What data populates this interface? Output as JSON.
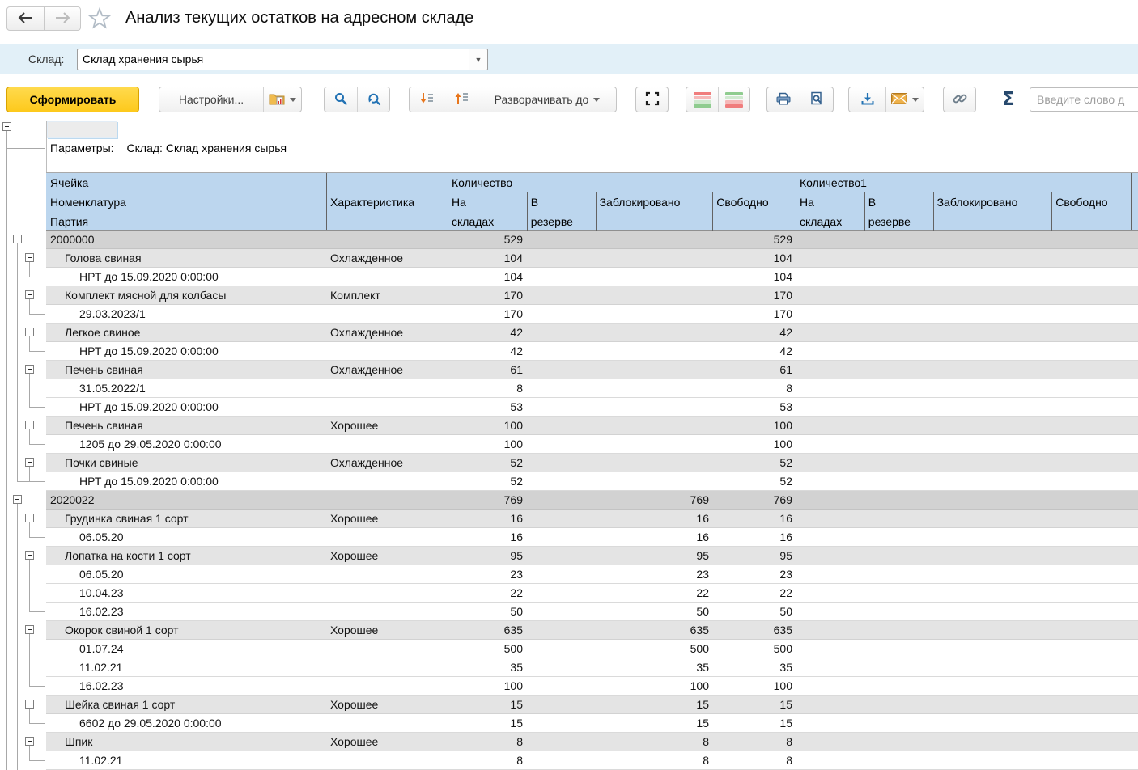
{
  "window": {
    "title": "Анализ текущих остатков на адресном складе"
  },
  "filter": {
    "label": "Склад:",
    "value": "Склад хранения сырья"
  },
  "toolbar": {
    "generate_label": "Сформировать",
    "settings_label": "Настройки...",
    "expand_to_label": "Разворачивать до",
    "sum_symbol": "Σ",
    "search_placeholder": "Введите слово д",
    "icons": [
      "back-arrow",
      "forward-arrow",
      "favorite-star",
      "report-variants-folder",
      "search",
      "search-next",
      "expand-all",
      "collapse-all",
      "autofit",
      "conditional-appearance-red-green",
      "conditional-appearance-green-red",
      "print",
      "print-preview",
      "save",
      "send-email",
      "get-link",
      "sum"
    ]
  },
  "colors": {
    "accent_yellow": "#FDC91C",
    "filter_bar": "#E2F0F8",
    "header_blue": "#BCD6EE",
    "group_row": "#D2D2D2",
    "item_row": "#E4E4E4",
    "icon_blue": "#2272B4",
    "icon_orange": "#E8761C"
  },
  "report": {
    "parameters_label": "Параметры:",
    "parameters_value": "Склад: Склад хранения сырья",
    "header": {
      "dimension_lines": [
        "Ячейка",
        "Номенклатура",
        "Партия"
      ],
      "characteristic": "Характеристика",
      "groups": [
        {
          "label": "Количество",
          "columns": [
            "На\nскладах",
            "В\nрезерве",
            "Заблокировано",
            "Свободно"
          ]
        },
        {
          "label": "Количество1",
          "columns": [
            "На\nскладах",
            "В\nрезерве",
            "Заблокировано",
            "Свободно"
          ]
        }
      ]
    },
    "rows": [
      {
        "level": 1,
        "name": "2000000",
        "characteristic": "",
        "values": [
          "529",
          "",
          "",
          "529",
          "",
          "",
          "",
          ""
        ]
      },
      {
        "level": 2,
        "name": "Голова свиная",
        "characteristic": "Охлажденное",
        "values": [
          "104",
          "",
          "",
          "104",
          "",
          "",
          "",
          ""
        ]
      },
      {
        "level": 3,
        "name": "НРТ до 15.09.2020 0:00:00",
        "characteristic": "",
        "values": [
          "104",
          "",
          "",
          "104",
          "",
          "",
          "",
          ""
        ]
      },
      {
        "level": 2,
        "name": "Комплект мясной для колбасы",
        "characteristic": "Комплект",
        "values": [
          "170",
          "",
          "",
          "170",
          "",
          "",
          "",
          ""
        ]
      },
      {
        "level": 3,
        "name": "29.03.2023/1",
        "characteristic": "",
        "values": [
          "170",
          "",
          "",
          "170",
          "",
          "",
          "",
          ""
        ]
      },
      {
        "level": 2,
        "name": "Легкое свиное",
        "characteristic": "Охлажденное",
        "values": [
          "42",
          "",
          "",
          "42",
          "",
          "",
          "",
          ""
        ]
      },
      {
        "level": 3,
        "name": "НРТ до 15.09.2020 0:00:00",
        "characteristic": "",
        "values": [
          "42",
          "",
          "",
          "42",
          "",
          "",
          "",
          ""
        ]
      },
      {
        "level": 2,
        "name": "Печень свиная",
        "characteristic": "Охлажденное",
        "values": [
          "61",
          "",
          "",
          "61",
          "",
          "",
          "",
          ""
        ]
      },
      {
        "level": 3,
        "name": "31.05.2022/1",
        "characteristic": "",
        "values": [
          "8",
          "",
          "",
          "8",
          "",
          "",
          "",
          ""
        ]
      },
      {
        "level": 3,
        "name": "НРТ до 15.09.2020 0:00:00",
        "characteristic": "",
        "values": [
          "53",
          "",
          "",
          "53",
          "",
          "",
          "",
          ""
        ]
      },
      {
        "level": 2,
        "name": "Печень свиная",
        "characteristic": "Хорошее",
        "values": [
          "100",
          "",
          "",
          "100",
          "",
          "",
          "",
          ""
        ]
      },
      {
        "level": 3,
        "name": "1205 до 29.05.2020 0:00:00",
        "characteristic": "",
        "values": [
          "100",
          "",
          "",
          "100",
          "",
          "",
          "",
          ""
        ]
      },
      {
        "level": 2,
        "name": "Почки свиные",
        "characteristic": "Охлажденное",
        "values": [
          "52",
          "",
          "",
          "52",
          "",
          "",
          "",
          ""
        ]
      },
      {
        "level": 3,
        "name": "НРТ до 15.09.2020 0:00:00",
        "characteristic": "",
        "values": [
          "52",
          "",
          "",
          "52",
          "",
          "",
          "",
          ""
        ]
      },
      {
        "level": 1,
        "name": "2020022",
        "characteristic": "",
        "values": [
          "769",
          "",
          "769",
          "769",
          "",
          "",
          "",
          ""
        ]
      },
      {
        "level": 2,
        "name": "Грудинка свиная 1 сорт",
        "characteristic": "Хорошее",
        "values": [
          "16",
          "",
          "16",
          "16",
          "",
          "",
          "",
          ""
        ]
      },
      {
        "level": 3,
        "name": "06.05.20",
        "characteristic": "",
        "values": [
          "16",
          "",
          "16",
          "16",
          "",
          "",
          "",
          ""
        ]
      },
      {
        "level": 2,
        "name": "Лопатка на кости 1 сорт",
        "characteristic": "Хорошее",
        "values": [
          "95",
          "",
          "95",
          "95",
          "",
          "",
          "",
          ""
        ]
      },
      {
        "level": 3,
        "name": "06.05.20",
        "characteristic": "",
        "values": [
          "23",
          "",
          "23",
          "23",
          "",
          "",
          "",
          ""
        ]
      },
      {
        "level": 3,
        "name": "10.04.23",
        "characteristic": "",
        "values": [
          "22",
          "",
          "22",
          "22",
          "",
          "",
          "",
          ""
        ]
      },
      {
        "level": 3,
        "name": "16.02.23",
        "characteristic": "",
        "values": [
          "50",
          "",
          "50",
          "50",
          "",
          "",
          "",
          ""
        ]
      },
      {
        "level": 2,
        "name": "Окорок свиной 1 сорт",
        "characteristic": "Хорошее",
        "values": [
          "635",
          "",
          "635",
          "635",
          "",
          "",
          "",
          ""
        ]
      },
      {
        "level": 3,
        "name": "01.07.24",
        "characteristic": "",
        "values": [
          "500",
          "",
          "500",
          "500",
          "",
          "",
          "",
          ""
        ]
      },
      {
        "level": 3,
        "name": "11.02.21",
        "characteristic": "",
        "values": [
          "35",
          "",
          "35",
          "35",
          "",
          "",
          "",
          ""
        ]
      },
      {
        "level": 3,
        "name": "16.02.23",
        "characteristic": "",
        "values": [
          "100",
          "",
          "100",
          "100",
          "",
          "",
          "",
          ""
        ]
      },
      {
        "level": 2,
        "name": "Шейка свиная 1 сорт",
        "characteristic": "Хорошее",
        "values": [
          "15",
          "",
          "15",
          "15",
          "",
          "",
          "",
          ""
        ]
      },
      {
        "level": 3,
        "name": "6602 до 29.05.2020 0:00:00",
        "characteristic": "",
        "values": [
          "15",
          "",
          "15",
          "15",
          "",
          "",
          "",
          ""
        ]
      },
      {
        "level": 2,
        "name": "Шпик",
        "characteristic": "Хорошее",
        "values": [
          "8",
          "",
          "8",
          "8",
          "",
          "",
          "",
          ""
        ]
      },
      {
        "level": 3,
        "name": "11.02.21",
        "characteristic": "",
        "values": [
          "8",
          "",
          "8",
          "8",
          "",
          "",
          "",
          ""
        ]
      }
    ]
  }
}
